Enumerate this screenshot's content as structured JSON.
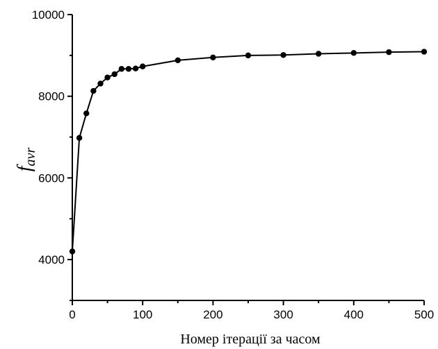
{
  "chart_data": {
    "type": "line",
    "title": "",
    "xlabel": "Номер ітерації за часом",
    "ylabel_main": "f",
    "ylabel_sub": "avr",
    "xlim": [
      0,
      500
    ],
    "ylim": [
      3000,
      10000
    ],
    "xticks": [
      0,
      100,
      200,
      300,
      400,
      500
    ],
    "yticks": [
      4000,
      6000,
      8000,
      10000
    ],
    "grid": false,
    "series": [
      {
        "color": "#000000",
        "x": [
          0,
          10,
          20,
          30,
          40,
          50,
          60,
          70,
          80,
          90,
          100,
          150,
          200,
          250,
          300,
          350,
          400,
          450,
          500
        ],
        "y": [
          4200,
          6980,
          7580,
          8130,
          8310,
          8460,
          8540,
          8670,
          8670,
          8680,
          8730,
          8880,
          8950,
          9000,
          9010,
          9040,
          9060,
          9080,
          9090
        ]
      }
    ]
  }
}
